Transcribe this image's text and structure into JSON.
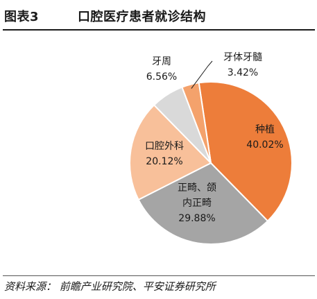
{
  "header": {
    "figure_label": "图表3",
    "title": "口腔医疗患者就诊结构"
  },
  "chart_data": {
    "type": "pie",
    "title": "口腔医疗患者就诊结构",
    "start_angle_deg": -8.5,
    "direction": "clockwise",
    "slices": [
      {
        "name": "种植",
        "value": 40.02,
        "pct_label": "40.02%",
        "color": "#ED7D3A"
      },
      {
        "name": "正畸、颌内正畸",
        "value": 29.88,
        "pct_label": "29.88%",
        "color": "#A5A5A5",
        "name_lines": [
          "正畸、颌",
          "内正畸"
        ]
      },
      {
        "name": "口腔外科",
        "value": 20.12,
        "pct_label": "20.12%",
        "color": "#F8C09A"
      },
      {
        "name": "牙周",
        "value": 6.56,
        "pct_label": "6.56%",
        "color": "#D9D9D9"
      },
      {
        "name": "牙体牙髓",
        "value": 3.42,
        "pct_label": "3.42%",
        "color": "#F4A26C"
      }
    ]
  },
  "footer": {
    "source": "资料来源：  前瞻产业研究院、平安证券研究所"
  }
}
